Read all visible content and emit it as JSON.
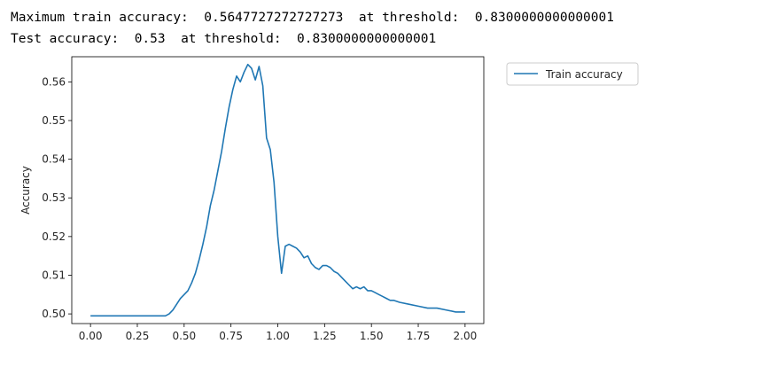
{
  "output": {
    "line1": {
      "label": "Maximum train accuracy:",
      "value": "0.5647727272727273",
      "threshold_label": "at threshold:",
      "threshold_value": "0.8300000000000001"
    },
    "line2": {
      "label": "Test accuracy:",
      "value": "0.53",
      "threshold_label": "at threshold:",
      "threshold_value": "0.8300000000000001"
    }
  },
  "chart_data": {
    "type": "line",
    "title": "",
    "xlabel": "",
    "ylabel": "Accuracy",
    "xlim": [
      -0.1,
      2.1
    ],
    "ylim": [
      0.4975,
      0.5665
    ],
    "x_ticks": [
      "0.00",
      "0.25",
      "0.50",
      "0.75",
      "1.00",
      "1.25",
      "1.50",
      "1.75",
      "2.00"
    ],
    "y_ticks": [
      "0.50",
      "0.51",
      "0.52",
      "0.53",
      "0.54",
      "0.55",
      "0.56"
    ],
    "grid": false,
    "legend_position": "outside-top-right",
    "color": "#1f77b4",
    "series": [
      {
        "name": "Train accuracy",
        "x": [
          0.0,
          0.1,
          0.2,
          0.3,
          0.4,
          0.42,
          0.44,
          0.46,
          0.48,
          0.5,
          0.52,
          0.54,
          0.56,
          0.58,
          0.6,
          0.62,
          0.64,
          0.66,
          0.68,
          0.7,
          0.72,
          0.74,
          0.76,
          0.78,
          0.8,
          0.82,
          0.84,
          0.86,
          0.88,
          0.9,
          0.92,
          0.94,
          0.96,
          0.98,
          1.0,
          1.02,
          1.04,
          1.06,
          1.08,
          1.1,
          1.12,
          1.14,
          1.16,
          1.18,
          1.2,
          1.22,
          1.24,
          1.26,
          1.28,
          1.3,
          1.32,
          1.34,
          1.36,
          1.38,
          1.4,
          1.42,
          1.44,
          1.46,
          1.48,
          1.5,
          1.52,
          1.54,
          1.56,
          1.58,
          1.6,
          1.62,
          1.65,
          1.7,
          1.75,
          1.8,
          1.85,
          1.9,
          1.95,
          2.0
        ],
        "y": [
          0.4995,
          0.4995,
          0.4995,
          0.4995,
          0.4995,
          0.5,
          0.501,
          0.5025,
          0.504,
          0.505,
          0.506,
          0.508,
          0.5105,
          0.514,
          0.518,
          0.5225,
          0.528,
          0.532,
          0.537,
          0.542,
          0.548,
          0.5535,
          0.558,
          0.5615,
          0.56,
          0.5625,
          0.5645,
          0.5635,
          0.5605,
          0.564,
          0.559,
          0.5455,
          0.5425,
          0.534,
          0.52,
          0.5105,
          0.5175,
          0.518,
          0.5175,
          0.517,
          0.516,
          0.5145,
          0.515,
          0.513,
          0.512,
          0.5115,
          0.5125,
          0.5125,
          0.512,
          0.511,
          0.5105,
          0.5095,
          0.5085,
          0.5075,
          0.5065,
          0.507,
          0.5065,
          0.507,
          0.506,
          0.506,
          0.5055,
          0.505,
          0.5045,
          0.504,
          0.5035,
          0.5035,
          0.503,
          0.5025,
          0.502,
          0.5015,
          0.5015,
          0.501,
          0.5005,
          0.5005
        ]
      }
    ]
  }
}
